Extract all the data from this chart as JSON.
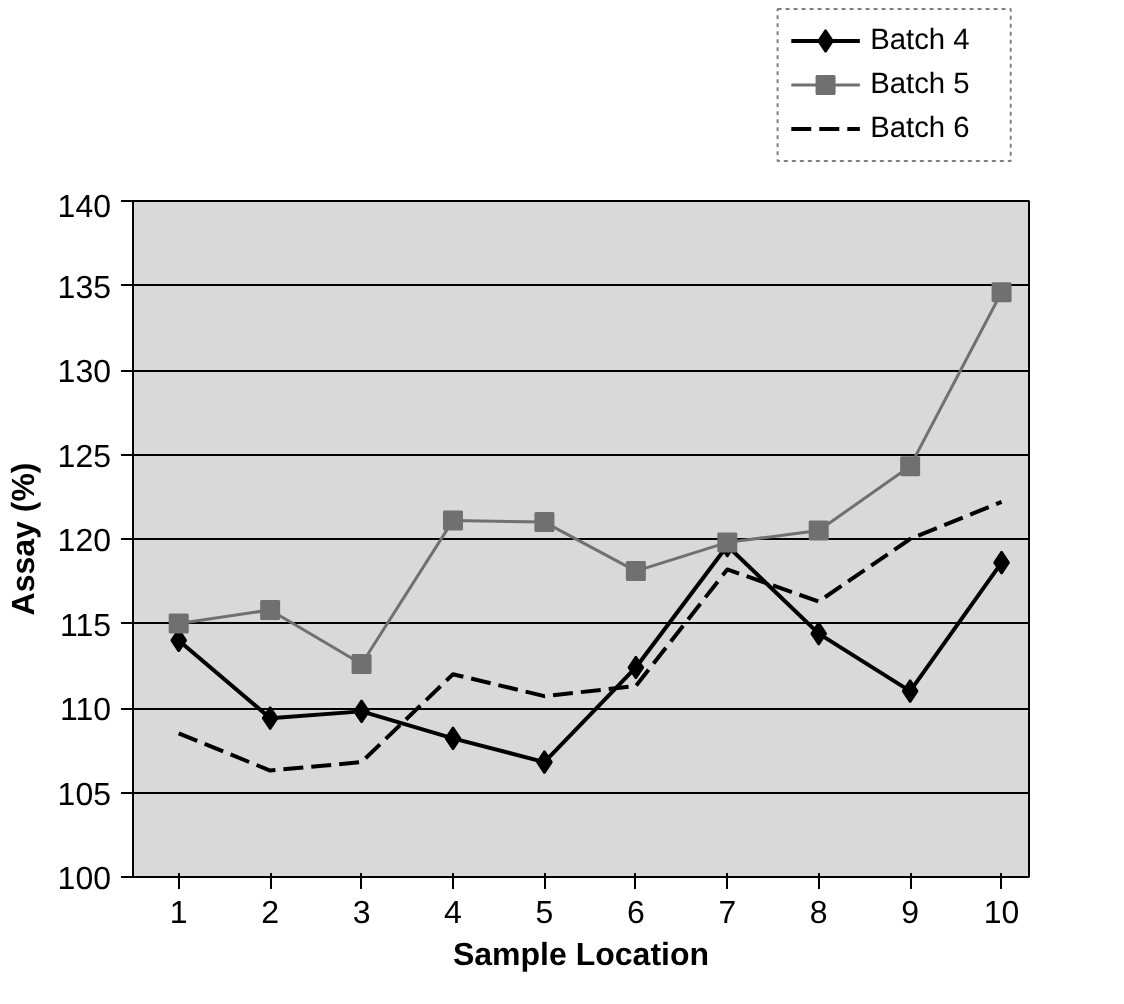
{
  "chart_data": {
    "type": "line",
    "xlabel": "Sample Location",
    "ylabel": "Assay (%)",
    "x": [
      1,
      2,
      3,
      4,
      5,
      6,
      7,
      8,
      9,
      10
    ],
    "xlim": [
      0.5,
      10.3
    ],
    "xticks": [
      1,
      2,
      3,
      4,
      5,
      6,
      7,
      8,
      9,
      10
    ],
    "ylim": [
      100,
      140
    ],
    "yticks": [
      100,
      105,
      110,
      115,
      120,
      125,
      130,
      135,
      140
    ],
    "grid": "y",
    "legend": "top right",
    "series": [
      {
        "name": "Batch 4",
        "color": "#000000",
        "marker": "diamond",
        "line_style": "solid",
        "values": [
          114,
          109.4,
          109.8,
          108.2,
          106.8,
          112.4,
          119.6,
          114.4,
          111,
          118.6
        ]
      },
      {
        "name": "Batch 5",
        "color": "#707070",
        "marker": "square",
        "line_style": "solid",
        "values": [
          115,
          115.8,
          112.6,
          121.1,
          121,
          118.1,
          119.8,
          120.5,
          124.3,
          134.6
        ]
      },
      {
        "name": "Batch 6",
        "color": "#000000",
        "marker": "none",
        "line_style": "dashed",
        "values": [
          108.5,
          106.3,
          106.8,
          112,
          110.7,
          111.3,
          118.2,
          116.3,
          120,
          122.2
        ]
      }
    ]
  }
}
